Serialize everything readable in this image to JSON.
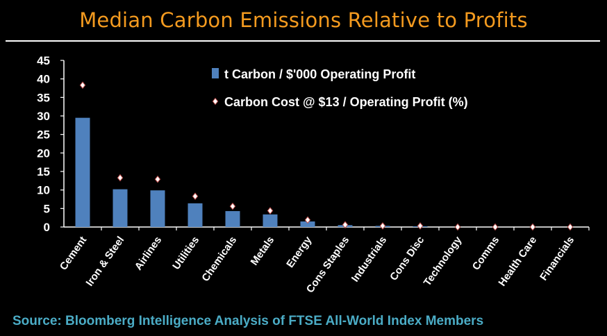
{
  "title": "Median Carbon Emissions Relative to Profits",
  "source": "Source: Bloomberg Intelligence Analysis of FTSE All-World Index Members",
  "colors": {
    "title": "#f39a1f",
    "bar": "#4f81bd",
    "marker": "#ffffff",
    "marker_edge": "#c0504d",
    "source": "#4bacc6",
    "background": "#000000"
  },
  "chart_data": {
    "type": "bar",
    "categories": [
      "Cement",
      "Iron & Steel",
      "Airlines",
      "Utilities",
      "Chemicals",
      "Metals",
      "Energy",
      "Cons Staples",
      "Industrials",
      "Cons Disc",
      "Technology",
      "Comms",
      "Health Care",
      "Financials"
    ],
    "series": [
      {
        "name": "t Carbon / $'000 Operating Profit",
        "kind": "bar",
        "values": [
          29.5,
          10.2,
          9.9,
          6.4,
          4.3,
          3.4,
          1.5,
          0.5,
          0.3,
          0.2,
          0.0,
          0.0,
          0.0,
          0.0
        ]
      },
      {
        "name": "Carbon Cost @ $13 / Operating Profit (%)",
        "kind": "marker",
        "values": [
          38.3,
          13.3,
          12.9,
          8.3,
          5.6,
          4.4,
          1.9,
          0.6,
          0.3,
          0.3,
          0.0,
          0.0,
          0.0,
          0.0
        ]
      }
    ],
    "ylim": [
      0,
      45
    ],
    "yticks": [
      0,
      5,
      10,
      15,
      20,
      25,
      30,
      35,
      40,
      45
    ],
    "legend": "top-center",
    "grid": false
  }
}
